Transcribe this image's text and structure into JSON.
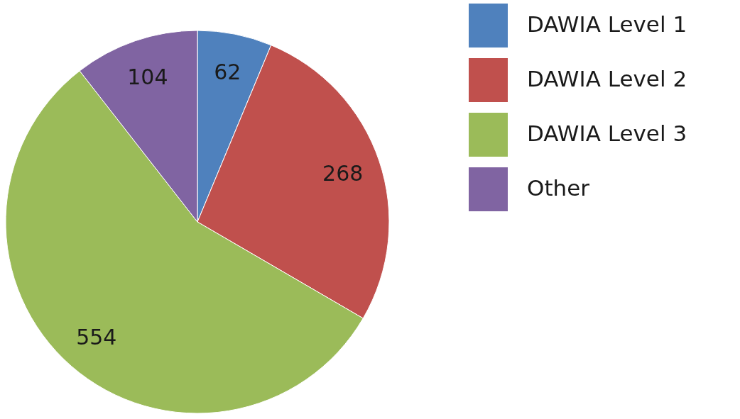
{
  "chart_data": {
    "type": "pie",
    "categories": [
      "DAWIA Level 1",
      "DAWIA Level 2",
      "DAWIA Level 3",
      "Other"
    ],
    "values": [
      62,
      268,
      554,
      104
    ],
    "colors": [
      "#4f81bd",
      "#c0504d",
      "#9bbb59",
      "#8064a2"
    ],
    "data_labels": true,
    "legend": "right"
  }
}
